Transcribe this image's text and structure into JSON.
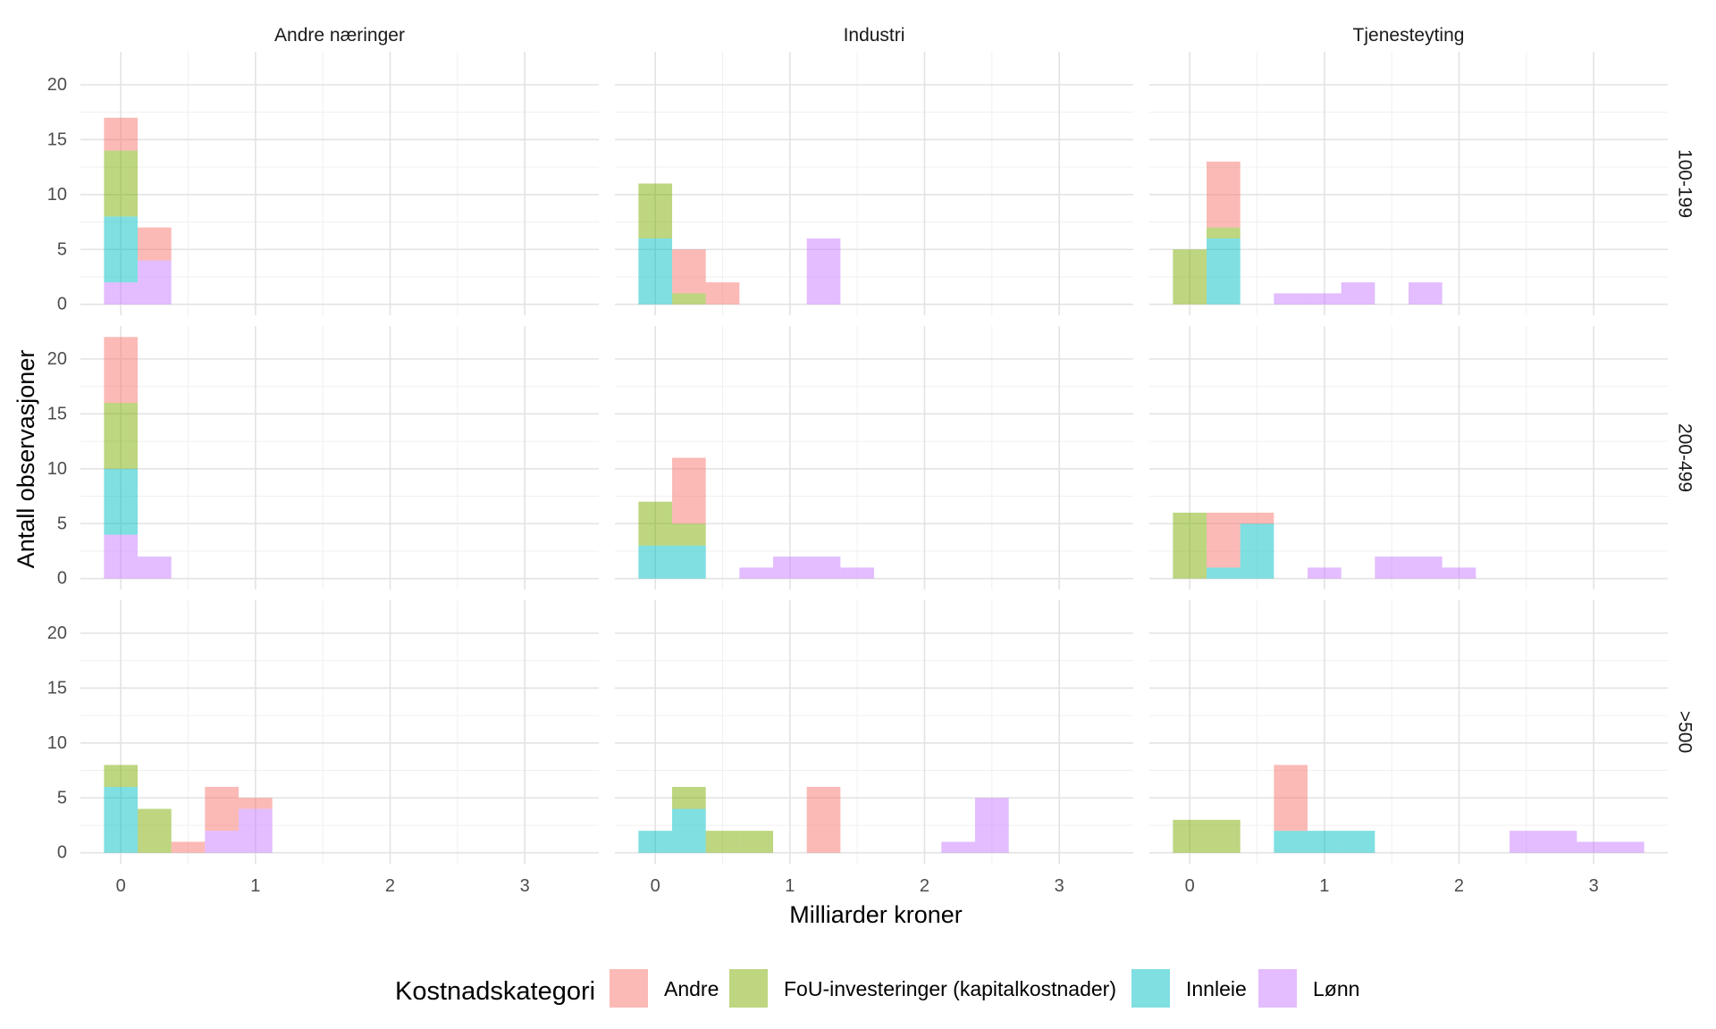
{
  "chart_data": {
    "type": "bar",
    "subtype": "faceted-stacked-histogram",
    "xlabel": "Milliarder kroner",
    "ylabel": "Antall observasjoner",
    "xlim": [
      -0.3,
      3.55
    ],
    "ylim": [
      -1,
      23
    ],
    "x_ticks": [
      "0",
      "1",
      "2",
      "3"
    ],
    "x_tick_values": [
      0,
      1,
      2,
      3
    ],
    "y_ticks": [
      "0",
      "5",
      "10",
      "15",
      "20"
    ],
    "y_tick_values": [
      0,
      5,
      10,
      15,
      20
    ],
    "bin_width": 0.25,
    "bar_opacity": 0.5,
    "grid": true,
    "columns": [
      "Andre næringer",
      "Industri",
      "Tjenesteyting"
    ],
    "rows": [
      "100-199",
      "200-499",
      ">500"
    ],
    "legend": {
      "title": "Kostnadskategori",
      "position": "bottom",
      "entries": [
        {
          "key": "Andre",
          "label": "Andre",
          "color": "#F8766D"
        },
        {
          "key": "FoU",
          "label": "FoU-investeringer (kapitalkostnader)",
          "color": "#7CAE00"
        },
        {
          "key": "Innleie",
          "label": "Innleie",
          "color": "#00BFC4"
        },
        {
          "key": "Lonn",
          "label": "Lønn",
          "color": "#C77CFF"
        }
      ]
    },
    "stack_order": [
      "Lonn",
      "Innleie",
      "FoU",
      "Andre"
    ],
    "panels": [
      {
        "row": 0,
        "col": 0,
        "bins": [
          {
            "x": 0.0,
            "Lonn": 2,
            "Innleie": 6,
            "FoU": 6,
            "Andre": 3
          },
          {
            "x": 0.25,
            "Lonn": 4,
            "Innleie": 0,
            "FoU": 0,
            "Andre": 3
          }
        ]
      },
      {
        "row": 0,
        "col": 1,
        "bins": [
          {
            "x": 0.0,
            "Lonn": 0,
            "Innleie": 6,
            "FoU": 5,
            "Andre": 0
          },
          {
            "x": 0.25,
            "Lonn": 0,
            "Innleie": 0,
            "FoU": 1,
            "Andre": 4
          },
          {
            "x": 0.5,
            "Lonn": 0,
            "Innleie": 0,
            "FoU": 0,
            "Andre": 2
          },
          {
            "x": 1.25,
            "Lonn": 6,
            "Innleie": 0,
            "FoU": 0,
            "Andre": 0
          }
        ]
      },
      {
        "row": 0,
        "col": 2,
        "bins": [
          {
            "x": 0.0,
            "Lonn": 0,
            "Innleie": 0,
            "FoU": 5,
            "Andre": 0
          },
          {
            "x": 0.25,
            "Lonn": 0,
            "Innleie": 6,
            "FoU": 1,
            "Andre": 6
          },
          {
            "x": 0.75,
            "Lonn": 1,
            "Innleie": 0,
            "FoU": 0,
            "Andre": 0
          },
          {
            "x": 1.0,
            "Lonn": 1,
            "Innleie": 0,
            "FoU": 0,
            "Andre": 0
          },
          {
            "x": 1.25,
            "Lonn": 2,
            "Innleie": 0,
            "FoU": 0,
            "Andre": 0
          },
          {
            "x": 1.75,
            "Lonn": 2,
            "Innleie": 0,
            "FoU": 0,
            "Andre": 0
          }
        ]
      },
      {
        "row": 1,
        "col": 0,
        "bins": [
          {
            "x": 0.0,
            "Lonn": 4,
            "Innleie": 6,
            "FoU": 6,
            "Andre": 6
          },
          {
            "x": 0.25,
            "Lonn": 2,
            "Innleie": 0,
            "FoU": 0,
            "Andre": 0
          }
        ]
      },
      {
        "row": 1,
        "col": 1,
        "bins": [
          {
            "x": 0.0,
            "Lonn": 0,
            "Innleie": 3,
            "FoU": 4,
            "Andre": 0
          },
          {
            "x": 0.25,
            "Lonn": 0,
            "Innleie": 3,
            "FoU": 2,
            "Andre": 6
          },
          {
            "x": 0.75,
            "Lonn": 1,
            "Innleie": 0,
            "FoU": 0,
            "Andre": 0
          },
          {
            "x": 1.0,
            "Lonn": 2,
            "Innleie": 0,
            "FoU": 0,
            "Andre": 0
          },
          {
            "x": 1.25,
            "Lonn": 2,
            "Innleie": 0,
            "FoU": 0,
            "Andre": 0
          },
          {
            "x": 1.5,
            "Lonn": 1,
            "Innleie": 0,
            "FoU": 0,
            "Andre": 0
          }
        ]
      },
      {
        "row": 1,
        "col": 2,
        "bins": [
          {
            "x": 0.0,
            "Lonn": 0,
            "Innleie": 0,
            "FoU": 6,
            "Andre": 0
          },
          {
            "x": 0.25,
            "Lonn": 0,
            "Innleie": 1,
            "FoU": 0,
            "Andre": 5
          },
          {
            "x": 0.5,
            "Lonn": 0,
            "Innleie": 5,
            "FoU": 0,
            "Andre": 1
          },
          {
            "x": 1.0,
            "Lonn": 1,
            "Innleie": 0,
            "FoU": 0,
            "Andre": 0
          },
          {
            "x": 1.5,
            "Lonn": 2,
            "Innleie": 0,
            "FoU": 0,
            "Andre": 0
          },
          {
            "x": 1.75,
            "Lonn": 2,
            "Innleie": 0,
            "FoU": 0,
            "Andre": 0
          },
          {
            "x": 2.0,
            "Lonn": 1,
            "Innleie": 0,
            "FoU": 0,
            "Andre": 0
          }
        ]
      },
      {
        "row": 2,
        "col": 0,
        "bins": [
          {
            "x": 0.0,
            "Lonn": 0,
            "Innleie": 6,
            "FoU": 2,
            "Andre": 0
          },
          {
            "x": 0.25,
            "Lonn": 0,
            "Innleie": 0,
            "FoU": 4,
            "Andre": 0
          },
          {
            "x": 0.5,
            "Lonn": 0,
            "Innleie": 0,
            "FoU": 0,
            "Andre": 1
          },
          {
            "x": 0.75,
            "Lonn": 2,
            "Innleie": 0,
            "FoU": 0,
            "Andre": 4
          },
          {
            "x": 1.0,
            "Lonn": 4,
            "Innleie": 0,
            "FoU": 0,
            "Andre": 1
          }
        ]
      },
      {
        "row": 2,
        "col": 1,
        "bins": [
          {
            "x": 0.0,
            "Lonn": 0,
            "Innleie": 2,
            "FoU": 0,
            "Andre": 0
          },
          {
            "x": 0.25,
            "Lonn": 0,
            "Innleie": 4,
            "FoU": 2,
            "Andre": 0
          },
          {
            "x": 0.5,
            "Lonn": 0,
            "Innleie": 0,
            "FoU": 2,
            "Andre": 0
          },
          {
            "x": 0.75,
            "Lonn": 0,
            "Innleie": 0,
            "FoU": 2,
            "Andre": 0
          },
          {
            "x": 1.25,
            "Lonn": 0,
            "Innleie": 0,
            "FoU": 0,
            "Andre": 6
          },
          {
            "x": 2.25,
            "Lonn": 1,
            "Innleie": 0,
            "FoU": 0,
            "Andre": 0
          },
          {
            "x": 2.5,
            "Lonn": 5,
            "Innleie": 0,
            "FoU": 0,
            "Andre": 0
          }
        ]
      },
      {
        "row": 2,
        "col": 2,
        "bins": [
          {
            "x": 0.0,
            "Lonn": 0,
            "Innleie": 0,
            "FoU": 3,
            "Andre": 0
          },
          {
            "x": 0.25,
            "Lonn": 0,
            "Innleie": 0,
            "FoU": 3,
            "Andre": 0
          },
          {
            "x": 0.75,
            "Lonn": 0,
            "Innleie": 2,
            "FoU": 0,
            "Andre": 6
          },
          {
            "x": 1.0,
            "Lonn": 0,
            "Innleie": 2,
            "FoU": 0,
            "Andre": 0
          },
          {
            "x": 1.25,
            "Lonn": 0,
            "Innleie": 2,
            "FoU": 0,
            "Andre": 0
          },
          {
            "x": 2.5,
            "Lonn": 2,
            "Innleie": 0,
            "FoU": 0,
            "Andre": 0
          },
          {
            "x": 2.75,
            "Lonn": 2,
            "Innleie": 0,
            "FoU": 0,
            "Andre": 0
          },
          {
            "x": 3.0,
            "Lonn": 1,
            "Innleie": 0,
            "FoU": 0,
            "Andre": 0
          },
          {
            "x": 3.25,
            "Lonn": 1,
            "Innleie": 0,
            "FoU": 0,
            "Andre": 0
          }
        ]
      }
    ]
  }
}
